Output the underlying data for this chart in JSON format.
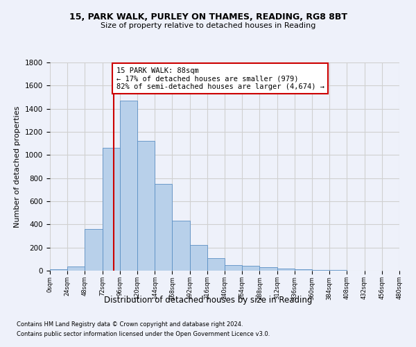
{
  "title1": "15, PARK WALK, PURLEY ON THAMES, READING, RG8 8BT",
  "title2": "Size of property relative to detached houses in Reading",
  "xlabel": "Distribution of detached houses by size in Reading",
  "ylabel": "Number of detached properties",
  "bar_values": [
    10,
    35,
    360,
    1060,
    1470,
    1120,
    750,
    435,
    225,
    110,
    50,
    40,
    30,
    20,
    10,
    5,
    5,
    2,
    1,
    0
  ],
  "bin_edges": [
    0,
    24,
    48,
    72,
    96,
    120,
    144,
    168,
    192,
    216,
    240,
    264,
    288,
    312,
    336,
    360,
    384,
    408,
    432,
    456,
    480
  ],
  "bar_color": "#b8d0ea",
  "bar_edge_color": "#5b8fc4",
  "property_size": 88,
  "annotation_text": "15 PARK WALK: 88sqm\n← 17% of detached houses are smaller (979)\n82% of semi-detached houses are larger (4,674) →",
  "vline_color": "#cc0000",
  "annotation_box_edge_color": "#cc0000",
  "annotation_box_face_color": "#ffffff",
  "grid_color": "#d0d0d0",
  "bg_color": "#eef1fa",
  "ylim": [
    0,
    1800
  ],
  "yticks": [
    0,
    200,
    400,
    600,
    800,
    1000,
    1200,
    1400,
    1600,
    1800
  ],
  "footnote1": "Contains HM Land Registry data © Crown copyright and database right 2024.",
  "footnote2": "Contains public sector information licensed under the Open Government Licence v3.0."
}
